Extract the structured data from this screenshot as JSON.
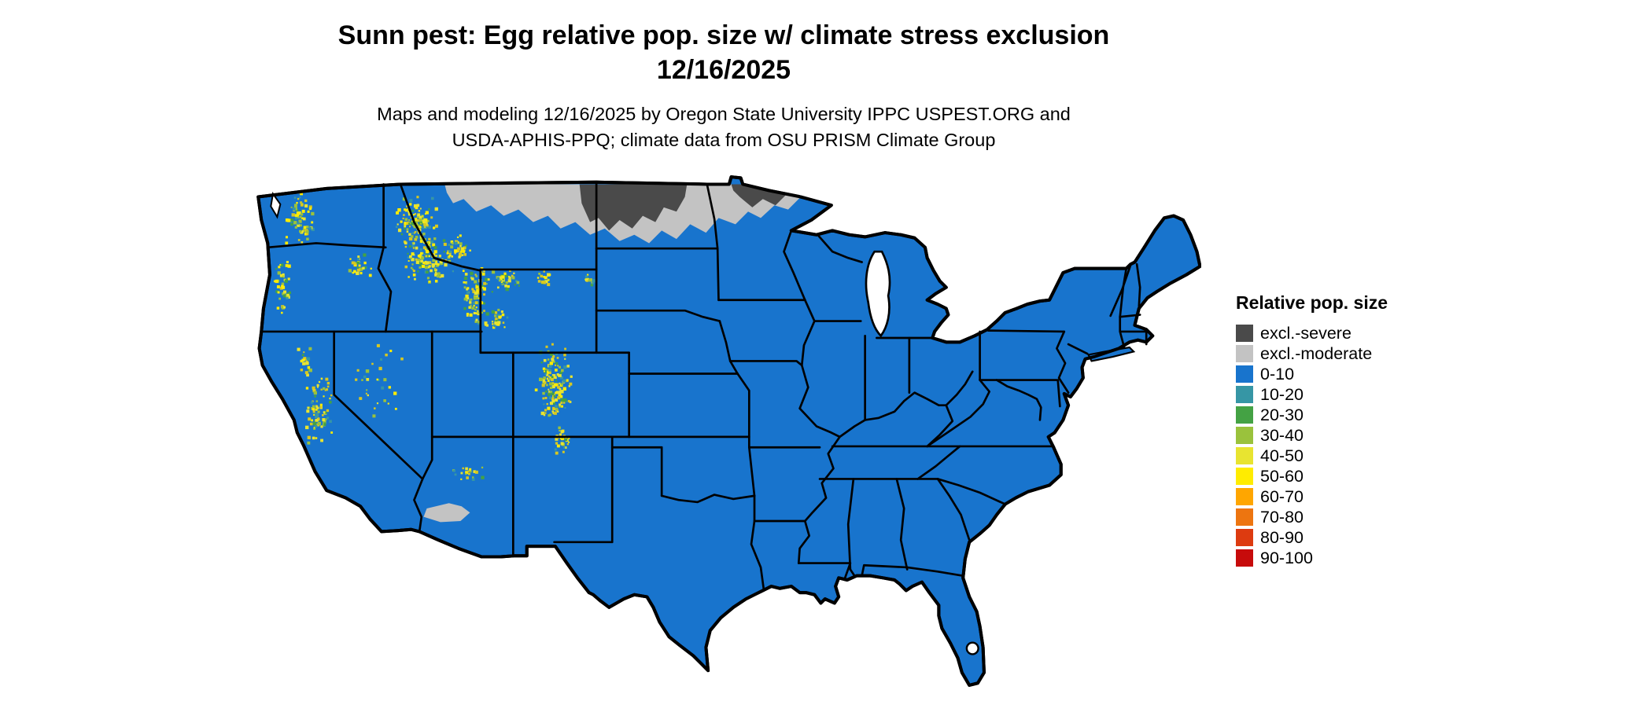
{
  "title": {
    "line1": "Sunn pest: Egg relative pop. size w/ climate stress exclusion",
    "line2": "12/16/2025"
  },
  "subtitle": {
    "line1": "Maps and modeling 12/16/2025 by Oregon State University IPPC USPEST.ORG and",
    "line2": "USDA-APHIS-PPQ; climate data from OSU PRISM Climate Group"
  },
  "legend": {
    "title": "Relative pop. size",
    "items": [
      {
        "label": "excl.-severe",
        "color": "#4a4a4a"
      },
      {
        "label": "excl.-moderate",
        "color": "#c3c3c3"
      },
      {
        "label": "0-10",
        "color": "#1874cd"
      },
      {
        "label": "10-20",
        "color": "#3696a5"
      },
      {
        "label": "20-30",
        "color": "#44a244"
      },
      {
        "label": "30-40",
        "color": "#9ac23c"
      },
      {
        "label": "40-50",
        "color": "#e8e430"
      },
      {
        "label": "50-60",
        "color": "#ffec00"
      },
      {
        "label": "60-70",
        "color": "#ffa600"
      },
      {
        "label": "70-80",
        "color": "#ed7510"
      },
      {
        "label": "80-90",
        "color": "#dd3b10"
      },
      {
        "label": "90-100",
        "color": "#c70b0b"
      }
    ]
  },
  "map": {
    "region": "Continental United States",
    "base_value_class": "0-10",
    "background_color": "#ffffff",
    "border_color": "#000000",
    "excluded_severe_area": "northern Montana / North Dakota / northern Minnesota",
    "excluded_moderate_area": "northern border band and southern Arizona patch",
    "elevated_value_areas": "Cascades, Sierra Nevada, Idaho and Montana Rockies, Wasatch, Wyoming and Colorado Rockies, northern New Mexico"
  }
}
